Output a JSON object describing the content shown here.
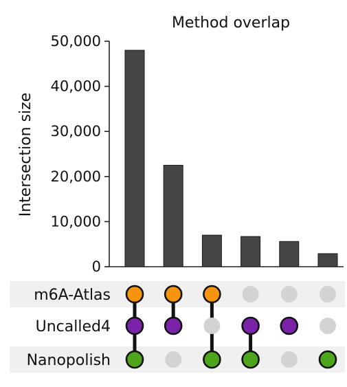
{
  "chart_data": {
    "type": "bar",
    "chart_subtype": "upset",
    "title": "Method overlap",
    "ylabel": "Intersection size",
    "ylim": [
      0,
      50000
    ],
    "yticks": [
      0,
      10000,
      20000,
      30000,
      40000,
      50000
    ],
    "ytick_labels": [
      "0",
      "10,000",
      "20,000",
      "30,000",
      "40,000",
      "50,000"
    ],
    "values": [
      48000,
      22500,
      7000,
      6700,
      5600,
      2900
    ],
    "sets": [
      {
        "name": "m6A-Atlas",
        "color": "#F7940F"
      },
      {
        "name": "Uncalled4",
        "color": "#7A23A8"
      },
      {
        "name": "Nanopolish",
        "color": "#4DA51B"
      }
    ],
    "membership": [
      [
        1,
        1,
        1
      ],
      [
        1,
        1,
        0
      ],
      [
        1,
        0,
        1
      ],
      [
        0,
        1,
        1
      ],
      [
        0,
        1,
        0
      ],
      [
        0,
        0,
        1
      ]
    ],
    "colors": {
      "bar": "#454545",
      "inactive_dot": "#D3D3D3",
      "connector": "#111111",
      "band": "#F0F0F0"
    },
    "grid": false,
    "legend": "none"
  }
}
